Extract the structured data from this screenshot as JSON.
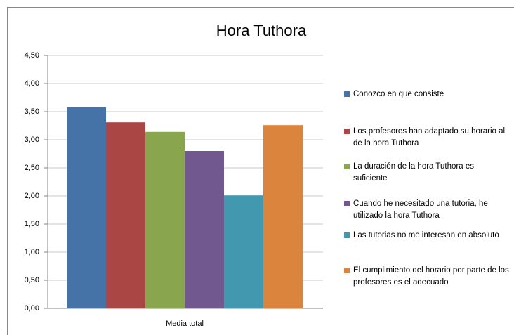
{
  "chart_data": {
    "type": "bar",
    "title": "Hora Tuthora",
    "categories": [
      "Media total"
    ],
    "series": [
      {
        "name": "Conozco en que consiste",
        "color": "#4572a7",
        "values": [
          3.58
        ]
      },
      {
        "name": "Los profesores han  adaptado su horario al de la hora Tuthora",
        "color": "#aa4643",
        "values": [
          3.31
        ]
      },
      {
        "name": "La duración de la hora Tuthora es suficiente",
        "color": "#89a54e",
        "values": [
          3.14
        ]
      },
      {
        "name": "Cuando he necesitado una tutoria, he utilizado la hora Tuthora",
        "color": "#71588f",
        "values": [
          2.8
        ]
      },
      {
        "name": "Las tutorias no me interesan en absoluto",
        "color": "#4198af",
        "values": [
          2.01
        ]
      },
      {
        "name": "El cumplimiento del horario por parte de los profesores es el adecuado",
        "color": "#db843d",
        "values": [
          3.26
        ]
      }
    ],
    "ylim": [
      0,
      4.5
    ],
    "yticks": [
      {
        "value": 0,
        "label": "0,00"
      },
      {
        "value": 0.5,
        "label": "0,50"
      },
      {
        "value": 1,
        "label": "1,00"
      },
      {
        "value": 1.5,
        "label": "1,50"
      },
      {
        "value": 2,
        "label": "2,00"
      },
      {
        "value": 2.5,
        "label": "2,50"
      },
      {
        "value": 3,
        "label": "3,00"
      },
      {
        "value": 3.5,
        "label": "3,50"
      },
      {
        "value": 4,
        "label": "4,00"
      },
      {
        "value": 4.5,
        "label": "4,50"
      }
    ],
    "grid": true,
    "legend": "right"
  }
}
